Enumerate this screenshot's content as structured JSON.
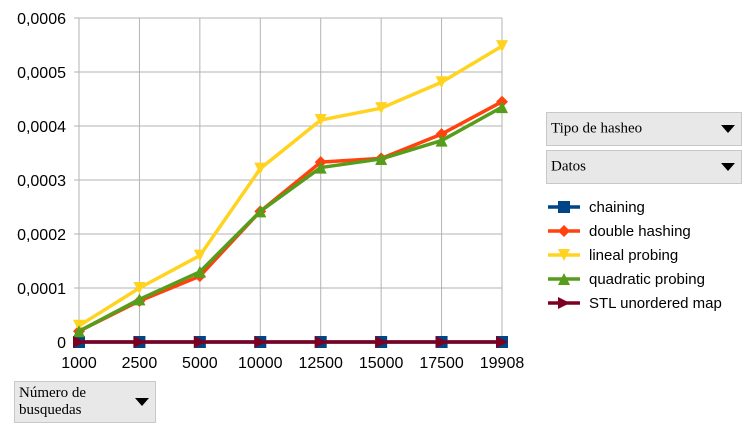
{
  "controls": {
    "tipo_label": "Tipo de hasheo",
    "datos_label": "Datos",
    "num_label": "Número de busquedas"
  },
  "colors": {
    "chaining": "#004586",
    "double hashing": "#ff420e",
    "lineal probing": "#ffd320",
    "quadratic probing": "#579d1c",
    "STL unordered map": "#7e0021"
  },
  "chart_data": {
    "type": "line",
    "categories": [
      "1000",
      "2500",
      "5000",
      "10000",
      "12500",
      "15000",
      "17500",
      "19908"
    ],
    "ylim": [
      0,
      0.0006
    ],
    "yticks": [
      "0",
      "0,0001",
      "0,0002",
      "0,0003",
      "0,0004",
      "0,0005",
      "0,0006"
    ],
    "grid": true,
    "legend_position": "right",
    "series": [
      {
        "name": "chaining",
        "marker": "square",
        "values": [
          0,
          0,
          0,
          0,
          0,
          0,
          0,
          0
        ]
      },
      {
        "name": "double hashing",
        "marker": "diamond",
        "values": [
          2e-05,
          7.6e-05,
          0.000122,
          0.000242,
          0.000333,
          0.00034,
          0.000385,
          0.000445
        ]
      },
      {
        "name": "lineal probing",
        "marker": "triangle-down",
        "values": [
          3e-05,
          0.0001,
          0.00016,
          0.000321,
          0.000411,
          0.000433,
          0.000481,
          0.000548
        ]
      },
      {
        "name": "quadratic probing",
        "marker": "triangle-up",
        "values": [
          2e-05,
          7.9e-05,
          0.00013,
          0.000242,
          0.000323,
          0.000339,
          0.000373,
          0.000435
        ]
      },
      {
        "name": "STL unordered map",
        "marker": "triangle-right",
        "values": [
          0,
          0,
          0,
          0,
          0,
          0,
          0,
          0
        ]
      }
    ]
  }
}
